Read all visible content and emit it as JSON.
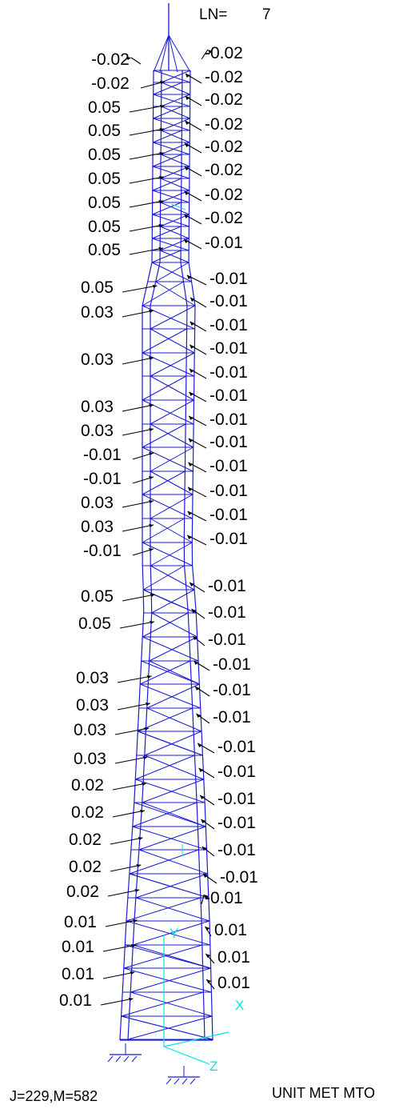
{
  "header": {
    "load_label": "LN=",
    "load_number": "7"
  },
  "footer": {
    "counts": "J=229,M=582",
    "units": "UNIT MET MTO"
  },
  "axes": {
    "y": "Y",
    "x": "X",
    "z": "Z"
  },
  "colors": {
    "members": "#1a1ad8",
    "axes": "#00e5e5",
    "text": "#000000",
    "arrows": "#000000"
  },
  "left_values": [
    "-0.02",
    "-0.02",
    "0.05",
    "0.05",
    "0.05",
    "0.05",
    "0.05",
    "0.05",
    "0.05",
    "0.05",
    "0.03",
    "0.03",
    "0.03",
    "0.03",
    "-0.01",
    "-0.01",
    "0.03",
    "0.03",
    "-0.01",
    "0.05",
    "0.05",
    "0.03",
    "0.03",
    "0.03",
    "0.03",
    "0.02",
    "0.02",
    "0.02",
    "0.02",
    "0.02",
    "0.01",
    "0.01",
    "0.01",
    "0.01"
  ],
  "right_values": [
    "-0.02",
    "-0.02",
    "-0.02",
    "-0.02",
    "-0.02",
    "-0.02",
    "-0.02",
    "-0.02",
    "-0.01",
    "-0.01",
    "-0.01",
    "-0.01",
    "-0.01",
    "-0.01",
    "-0.01",
    "-0.01",
    "-0.01",
    "-0.01",
    "-0.01",
    "-0.01",
    "-0.01",
    "-0.01",
    "-0.01",
    "-0.01",
    "-0.01",
    "-0.01",
    "-0.01",
    "-0.01",
    "-0.01",
    "-0.01",
    "-0.01",
    "-0.01",
    "-0.01",
    "-0.01",
    "0.01",
    "0.01",
    "0.01"
  ]
}
